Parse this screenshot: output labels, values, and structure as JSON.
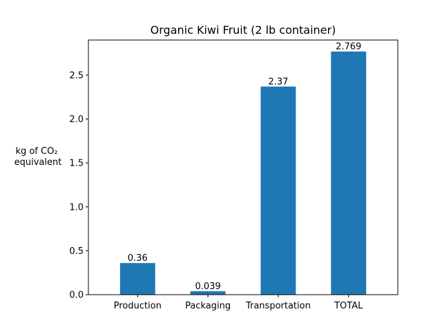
{
  "chart_data": {
    "type": "bar",
    "title": "Organic Kiwi Fruit (2 lb container)",
    "xlabel": "",
    "ylabel_lines": [
      "kg of CO₂",
      "equivalent"
    ],
    "categories": [
      "Production",
      "Packaging",
      "Transportation",
      "TOTAL"
    ],
    "values": [
      0.36,
      0.039,
      2.37,
      2.769
    ],
    "data_labels": [
      "0.36",
      "0.039",
      "2.37",
      "2.769"
    ],
    "ylim": [
      0,
      2.9
    ],
    "yticks": [
      0.0,
      0.5,
      1.0,
      1.5,
      2.0,
      2.5
    ],
    "ytick_labels": [
      "0.0",
      "0.5",
      "1.0",
      "1.5",
      "2.0",
      "2.5"
    ],
    "bar_color": "#1f77b4",
    "grid": false,
    "legend": "none"
  }
}
